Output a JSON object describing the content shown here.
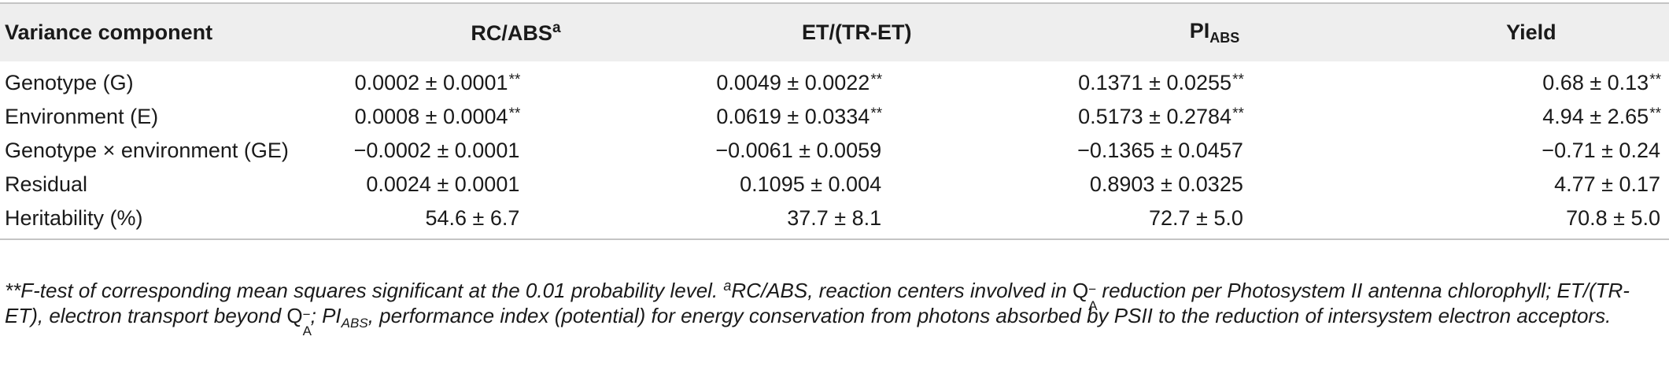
{
  "table": {
    "headers": {
      "variance_component": "Variance component",
      "rc_abs": "RC/ABS",
      "rc_abs_sup": "a",
      "et_tr_et": "ET/(TR-ET)",
      "pi_abs": "PI",
      "pi_abs_sub": "ABS",
      "yield": "Yield"
    },
    "rows": [
      {
        "label": "Genotype (G)",
        "rc_abs": "0.0002 ± 0.0001",
        "rc_abs_sig": "**",
        "et_tr_et": "0.0049 ± 0.0022",
        "et_tr_et_sig": "**",
        "pi_abs": "0.1371 ± 0.0255",
        "pi_abs_sig": "**",
        "yield": "0.68 ± 0.13",
        "yield_sig": "**"
      },
      {
        "label": "Environment (E)",
        "rc_abs": "0.0008 ± 0.0004",
        "rc_abs_sig": "**",
        "et_tr_et": "0.0619 ± 0.0334",
        "et_tr_et_sig": "**",
        "pi_abs": "0.5173 ± 0.2784",
        "pi_abs_sig": "**",
        "yield": "4.94 ± 2.65",
        "yield_sig": "**"
      },
      {
        "label": "Genotype × environment (GE)",
        "rc_abs": "−0.0002 ± 0.0001",
        "rc_abs_sig": "",
        "et_tr_et": "−0.0061 ± 0.0059",
        "et_tr_et_sig": "",
        "pi_abs": "−0.1365 ± 0.0457",
        "pi_abs_sig": "",
        "yield": "−0.71 ± 0.24",
        "yield_sig": ""
      },
      {
        "label": "Residual",
        "rc_abs": "0.0024 ± 0.0001",
        "rc_abs_sig": "",
        "et_tr_et": "0.1095 ± 0.004",
        "et_tr_et_sig": "",
        "pi_abs": "0.8903 ± 0.0325",
        "pi_abs_sig": "",
        "yield": "4.77 ± 0.17",
        "yield_sig": ""
      },
      {
        "label": "Heritability (%)",
        "rc_abs": "54.6 ± 6.7",
        "rc_abs_sig": "",
        "et_tr_et": "37.7 ± 8.1",
        "et_tr_et_sig": "",
        "pi_abs": "72.7 ± 5.0",
        "pi_abs_sig": "",
        "yield": "70.8 ± 5.0",
        "yield_sig": ""
      }
    ]
  },
  "footnote": {
    "p1": "**F-test of corresponding mean squares significant at the 0.01 probability level. ",
    "p2_sup": "a",
    "p3": "RC/ABS, reaction centers involved in ",
    "q_letter": "Q",
    "q_minus": "−",
    "q_sub": "A",
    "p4": " reduction per Photosystem II antenna chlorophyll; ET/(TR-ET), electron transport beyond ",
    "p5": "; PI",
    "p5_sub": "ABS",
    "p6": ", performance index (potential) for energy conservation from photons absorbed by PSII to the reduction of intersystem electron acceptors."
  }
}
